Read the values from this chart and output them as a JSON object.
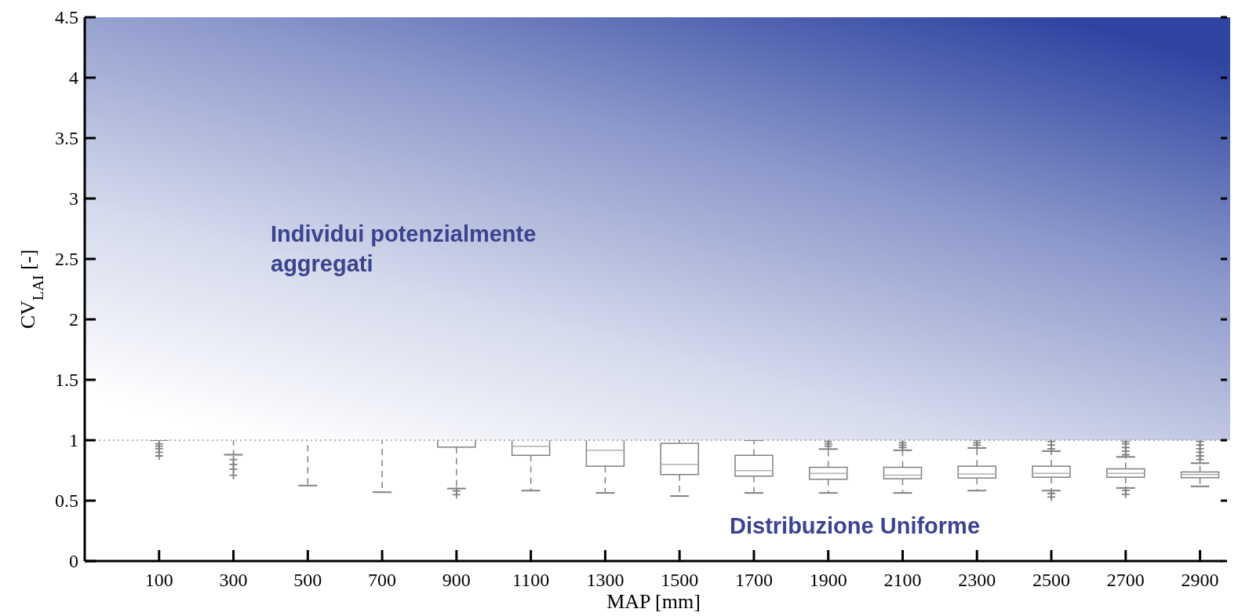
{
  "chart_data": {
    "type": "box",
    "xlabel": "MAP [mm]",
    "ylabel": "CV$_{LAI}$ [-]",
    "categories": [
      "100",
      "300",
      "500",
      "700",
      "900",
      "1100",
      "1300",
      "1500",
      "1700",
      "1900",
      "2100",
      "2300",
      "2500",
      "2700",
      "2900"
    ],
    "boxes": [
      {
        "low": 1.0,
        "q1": 1.2,
        "median": 1.4,
        "q3": 1.7,
        "high": 2.2,
        "outliers": [
          0.97,
          0.95,
          0.93,
          0.9,
          0.87
        ]
      },
      {
        "low": 0.88,
        "q1": 1.1,
        "median": 1.3,
        "q3": 1.6,
        "high": 2.0,
        "outliers": [
          0.84,
          0.8,
          0.76,
          0.71
        ]
      },
      {
        "low": 0.625,
        "q1": 1.05,
        "median": 1.25,
        "q3": 1.5,
        "high": 2.0
      },
      {
        "low": 0.57,
        "q1": 1.02,
        "median": 1.2,
        "q3": 1.45,
        "high": 1.9
      },
      {
        "low": 0.6,
        "q1": 0.943,
        "median": 1.05,
        "q3": 1.2,
        "high": 1.6,
        "outliers": [
          0.58,
          0.55
        ]
      },
      {
        "low": 0.583,
        "q1": 0.875,
        "median": 0.95,
        "q3": 1.1,
        "high": 1.4
      },
      {
        "low": 0.564,
        "q1": 0.785,
        "median": 0.917,
        "q3": 1.03,
        "high": 1.2
      },
      {
        "low": 0.538,
        "q1": 0.716,
        "median": 0.8,
        "q3": 0.975,
        "high": 1.05
      },
      {
        "low": 0.564,
        "q1": 0.703,
        "median": 0.748,
        "q3": 0.875,
        "high": 1.0
      },
      {
        "low": 0.564,
        "q1": 0.677,
        "median": 0.726,
        "q3": 0.776,
        "high": 0.927,
        "outliers": [
          0.95,
          0.97,
          0.99
        ]
      },
      {
        "low": 0.564,
        "q1": 0.681,
        "median": 0.711,
        "q3": 0.776,
        "high": 0.917,
        "outliers": [
          0.94,
          0.96,
          0.98
        ]
      },
      {
        "low": 0.583,
        "q1": 0.687,
        "median": 0.72,
        "q3": 0.785,
        "high": 0.936,
        "outliers": [
          0.96,
          0.98,
          1.0
        ]
      },
      {
        "low": 0.583,
        "q1": 0.694,
        "median": 0.726,
        "q3": 0.785,
        "high": 0.91,
        "outliers": [
          0.93,
          0.96,
          0.99,
          0.56,
          0.53
        ]
      },
      {
        "low": 0.605,
        "q1": 0.694,
        "median": 0.726,
        "q3": 0.763,
        "high": 0.862,
        "outliers": [
          0.88,
          0.91,
          0.94,
          0.97,
          0.99,
          0.585,
          0.553
        ]
      },
      {
        "low": 0.618,
        "q1": 0.69,
        "median": 0.716,
        "q3": 0.737,
        "high": 0.81,
        "outliers": [
          0.84,
          0.87,
          0.9,
          0.93,
          0.96,
          0.99
        ]
      }
    ],
    "color": "#808080",
    "ylim": [
      0,
      4.5
    ],
    "yticks": [
      0,
      0.5,
      1,
      1.5,
      2,
      2.5,
      3,
      3.5,
      4,
      4.5
    ],
    "bands": [
      {
        "axis": "y",
        "from": 1,
        "to": 4.5,
        "color": "#2e44a0"
      }
    ],
    "ref_lines": [
      {
        "axis": "y",
        "value": 1,
        "line_style": "dotted",
        "color": "#999999"
      }
    ],
    "annotations": [
      "Individui potenzialmente\naggregati",
      "Distribuzione Uniforme"
    ]
  }
}
